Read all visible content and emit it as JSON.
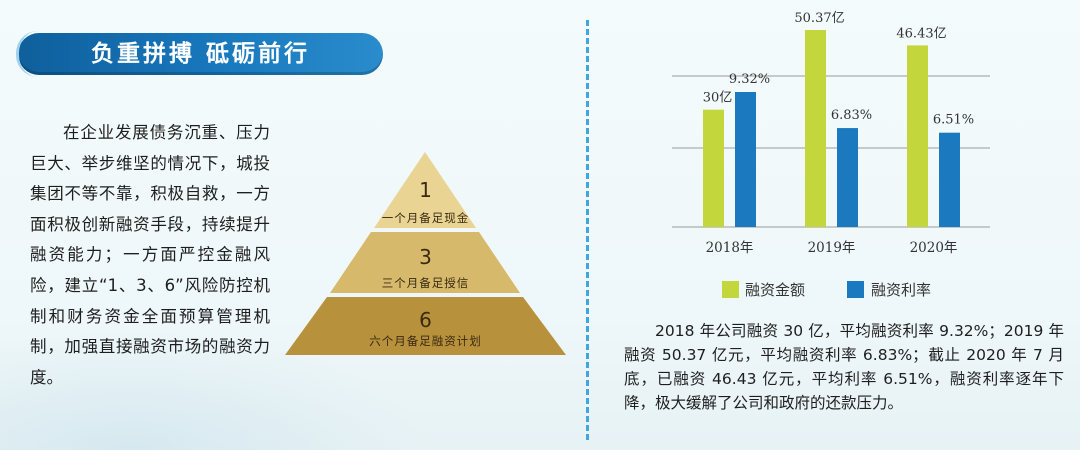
{
  "banner": {
    "title": "负重拼搏  砥砺前行"
  },
  "left_paragraph": "在企业发展债务沉重、压力巨大、举步维坚的情况下，城投集团不等不靠，积极自救，一方面积极创新融资手段，持续提升融资能力；一方面严控金融风险，建立“1、3、6”风险防控机制和财务资金全面预算管理机制，加强直接融资市场的融资力度。",
  "pyramid": {
    "levels": [
      {
        "number": "1",
        "label": "一个月备足现金",
        "color": "#e9d494"
      },
      {
        "number": "3",
        "label": "三个月备足授信",
        "color": "#d6b96a"
      },
      {
        "number": "6",
        "label": "六个月备足融资计划",
        "color": "#b8913c"
      }
    ]
  },
  "chart_data": {
    "type": "bar",
    "categories": [
      "2018年",
      "2019年",
      "2020年"
    ],
    "series": [
      {
        "name": "融资金额",
        "values": [
          30,
          50.37,
          46.43
        ],
        "labels": [
          "30亿",
          "50.37亿",
          "46.43亿"
        ],
        "color": "#c3d63b"
      },
      {
        "name": "融资利率",
        "values": [
          9.32,
          6.83,
          6.51
        ],
        "labels": [
          "9.32%",
          "6.83%",
          "6.51%"
        ],
        "color": "#1a79bf"
      }
    ],
    "grid": true,
    "legend": "bottom"
  },
  "right_paragraph": "2018 年公司融资 30 亿，平均融资利率 9.32%；2019 年融资 50.37 亿元，平均融资利率 6.83%；截止 2020 年 7 月底，已融资 46.43 亿元，平均利率 6.51%，融资利率逐年下降，极大缓解了公司和政府的还款压力。"
}
